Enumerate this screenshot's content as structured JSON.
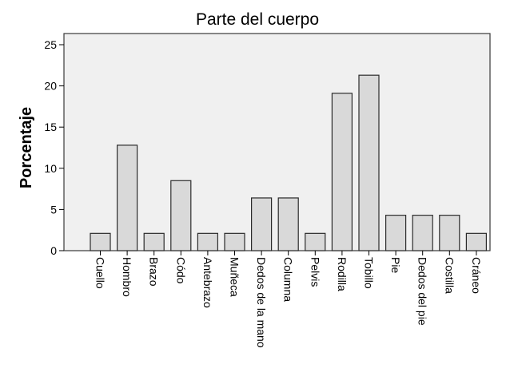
{
  "chart_data": {
    "type": "bar",
    "title": "Parte del cuerpo",
    "xlabel": "",
    "ylabel": "Porcentaje",
    "ylim": [
      0,
      25
    ],
    "yticks": [
      0,
      5,
      10,
      15,
      20,
      25
    ],
    "grid": false,
    "categories": [
      "Cuello",
      "Hombro",
      "Brazo",
      "Códo",
      "Antebrazo",
      "Muñeca",
      "Dedos de la mano",
      "Columna",
      "Pelvis",
      "Rodilla",
      "Tobillo",
      "Pie",
      "Dedos del pie",
      "Costilla",
      "Cráneo"
    ],
    "values": [
      2.1,
      12.8,
      2.1,
      8.5,
      2.1,
      2.1,
      6.4,
      6.4,
      2.1,
      19.1,
      21.3,
      4.3,
      4.3,
      4.3,
      2.1
    ],
    "colors": {
      "plot_background": "#f0f0f0",
      "bar_fill": "#d9d9d9",
      "bar_stroke": "#2b2b2b",
      "frame": "#3a3a3a"
    }
  }
}
